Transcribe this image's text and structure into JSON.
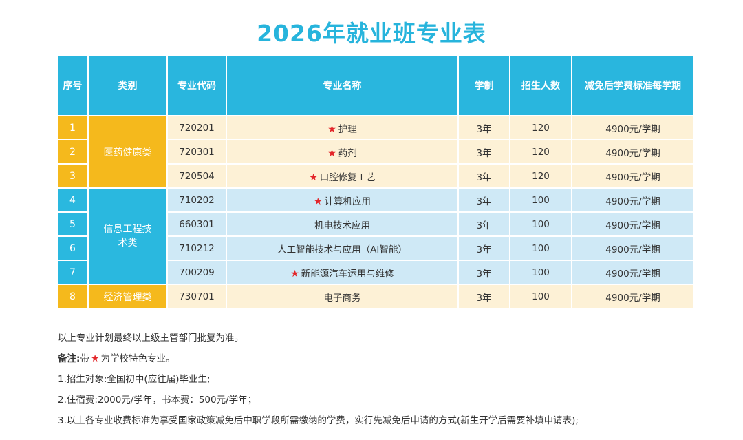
{
  "title": "2026年就业班专业表",
  "table": {
    "headers": [
      "序号",
      "类别",
      "专业代码",
      "专业名称",
      "学制",
      "招生人数",
      "减免后学费标准每学期"
    ],
    "categories": [
      "医药健康类",
      "信息工程技术类",
      "经济管理类"
    ],
    "star_symbol": "★",
    "rows": [
      {
        "seq": "1",
        "code": "720201",
        "name": "护理",
        "years": "3年",
        "count": "120",
        "fee": "4900元/学期"
      },
      {
        "seq": "2",
        "code": "720301",
        "name": "药剂",
        "years": "3年",
        "count": "120",
        "fee": "4900元/学期"
      },
      {
        "seq": "3",
        "code": "720504",
        "name": "口腔修复工艺",
        "years": "3年",
        "count": "120",
        "fee": "4900元/学期"
      },
      {
        "seq": "4",
        "code": "710202",
        "name": "计算机应用",
        "years": "3年",
        "count": "100",
        "fee": "4900元/学期"
      },
      {
        "seq": "5",
        "code": "660301",
        "name": "机电技术应用",
        "years": "3年",
        "count": "100",
        "fee": "4900元/学期"
      },
      {
        "seq": "6",
        "code": "710212",
        "name": "人工智能技术与应用（AI智能）",
        "years": "3年",
        "count": "100",
        "fee": "4900元/学期"
      },
      {
        "seq": "7",
        "code": "700209",
        "name": "新能源汽车运用与维修",
        "years": "3年",
        "count": "100",
        "fee": "4900元/学期"
      },
      {
        "seq": "8",
        "code": "730701",
        "name": "电子商务",
        "years": "3年",
        "count": "100",
        "fee": "4900元/学期"
      }
    ]
  },
  "notes": {
    "line1": "以上专业计划最终以上级主管部门批复为准。",
    "remark_label": "备注:",
    "remark_prefix": "带",
    "remark_suffix": "为学校特色专业。",
    "line3": "1.招生对象:全国初中(应往届)毕业生;",
    "line4": "2.住宿费:2000元/学年，书本费：500元/学年；",
    "line5": "3.以上各专业收费标准为享受国家政策减免后中职学段所需缴纳的学费，实行先减免后申请的方式(新生开学后需要补填申请表);"
  },
  "colors": {
    "header_blue": "#29b6de",
    "title_blue": "#27b4dc",
    "orange": "#f5b91c",
    "light_orange": "#fdf1d6",
    "light_blue": "#cfe9f6",
    "star_red": "#e3262a"
  }
}
